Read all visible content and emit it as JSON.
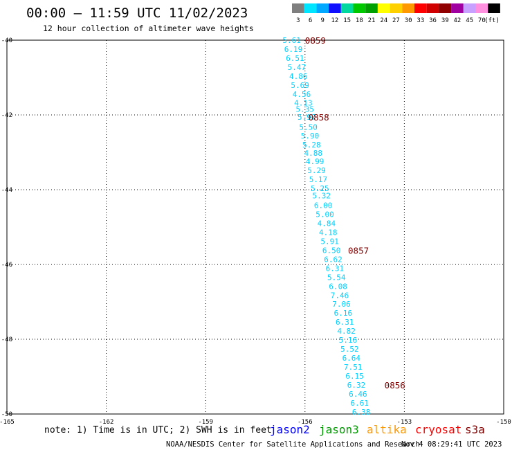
{
  "header": {
    "title": "00:00 – 11:59 UTC 11/02/2023",
    "subtitle": "12 hour collection of altimeter wave heights"
  },
  "colorbar": {
    "unit": "(ft)",
    "items": [
      {
        "label": "3",
        "color": "#7f7f7f"
      },
      {
        "label": "6",
        "color": "#00e5ff"
      },
      {
        "label": "9",
        "color": "#00a8ff"
      },
      {
        "label": "12",
        "color": "#1010ff"
      },
      {
        "label": "15",
        "color": "#00d8a0"
      },
      {
        "label": "18",
        "color": "#00c800"
      },
      {
        "label": "21",
        "color": "#00a000"
      },
      {
        "label": "24",
        "color": "#ffff00"
      },
      {
        "label": "27",
        "color": "#ffd000"
      },
      {
        "label": "30",
        "color": "#ff9900"
      },
      {
        "label": "33",
        "color": "#ff0000"
      },
      {
        "label": "36",
        "color": "#d00000"
      },
      {
        "label": "39",
        "color": "#900000"
      },
      {
        "label": "42",
        "color": "#a000a0"
      },
      {
        "label": "45",
        "color": "#c8a0ff"
      },
      {
        "label": "70",
        "color": "#ff90e0"
      },
      {
        "label": "",
        "color": "#000000"
      }
    ]
  },
  "chart_data": {
    "type": "scatter",
    "x_axis": {
      "range": [
        -165,
        -150
      ],
      "tick_values": [
        -165,
        -162,
        -159,
        -156,
        -153,
        -150
      ],
      "tick_labels": [
        "-165",
        "-162",
        "-159",
        "-156",
        "-153",
        "-150"
      ]
    },
    "y_axis": {
      "range": [
        -50,
        -40
      ],
      "tick_values": [
        -40,
        -42,
        -44,
        -46,
        -48,
        -50
      ],
      "tick_labels": [
        "-40",
        "-42",
        "-44",
        "-46",
        "-48",
        "-50"
      ]
    },
    "grid": true,
    "label_color": "#00d0ff",
    "points": [
      {
        "lon": -156.4,
        "lat": -40.0,
        "label": "5.61"
      },
      {
        "lon": -156.35,
        "lat": -40.24,
        "label": "6.19"
      },
      {
        "lon": -156.3,
        "lat": -40.48,
        "label": "6.51"
      },
      {
        "lon": -156.25,
        "lat": -40.72,
        "label": "5.47"
      },
      {
        "lon": -156.2,
        "lat": -40.96,
        "label": "4.86"
      },
      {
        "lon": -156.15,
        "lat": -41.2,
        "label": "5.69"
      },
      {
        "lon": -156.1,
        "lat": -41.44,
        "label": "4.56"
      },
      {
        "lon": -156.05,
        "lat": -41.68,
        "label": "4.13"
      },
      {
        "lon": -156.0,
        "lat": -41.84,
        "label": "5.35"
      },
      {
        "lon": -155.95,
        "lat": -42.06,
        "label": "5.97"
      },
      {
        "lon": -155.9,
        "lat": -42.32,
        "label": "5.50"
      },
      {
        "lon": -155.85,
        "lat": -42.56,
        "label": "5.90"
      },
      {
        "lon": -155.8,
        "lat": -42.8,
        "label": "5.28"
      },
      {
        "lon": -155.75,
        "lat": -43.02,
        "label": "4.88"
      },
      {
        "lon": -155.7,
        "lat": -43.24,
        "label": "4.99"
      },
      {
        "lon": -155.65,
        "lat": -43.48,
        "label": "5.29"
      },
      {
        "lon": -155.6,
        "lat": -43.72,
        "label": "5.17"
      },
      {
        "lon": -155.55,
        "lat": -43.96,
        "label": "5.25"
      },
      {
        "lon": -155.5,
        "lat": -44.16,
        "label": "5.32"
      },
      {
        "lon": -155.45,
        "lat": -44.42,
        "label": "6.00"
      },
      {
        "lon": -155.4,
        "lat": -44.66,
        "label": "5.00"
      },
      {
        "lon": -155.35,
        "lat": -44.9,
        "label": "4.84"
      },
      {
        "lon": -155.3,
        "lat": -45.14,
        "label": "4.18"
      },
      {
        "lon": -155.25,
        "lat": -45.38,
        "label": "5.91"
      },
      {
        "lon": -155.2,
        "lat": -45.62,
        "label": "6.50"
      },
      {
        "lon": -155.15,
        "lat": -45.86,
        "label": "6.62"
      },
      {
        "lon": -155.1,
        "lat": -46.1,
        "label": "6.31"
      },
      {
        "lon": -155.05,
        "lat": -46.34,
        "label": "5.54"
      },
      {
        "lon": -155.0,
        "lat": -46.58,
        "label": "6.08"
      },
      {
        "lon": -154.95,
        "lat": -46.82,
        "label": "7.46"
      },
      {
        "lon": -154.9,
        "lat": -47.06,
        "label": "7.06"
      },
      {
        "lon": -154.85,
        "lat": -47.3,
        "label": "6.16"
      },
      {
        "lon": -154.8,
        "lat": -47.54,
        "label": "6.31"
      },
      {
        "lon": -154.75,
        "lat": -47.78,
        "label": "4.82"
      },
      {
        "lon": -154.7,
        "lat": -48.02,
        "label": "5.16"
      },
      {
        "lon": -154.65,
        "lat": -48.26,
        "label": "5.52"
      },
      {
        "lon": -154.6,
        "lat": -48.5,
        "label": "6.64"
      },
      {
        "lon": -154.55,
        "lat": -48.74,
        "label": "7.51"
      },
      {
        "lon": -154.5,
        "lat": -48.98,
        "label": "6.15"
      },
      {
        "lon": -154.45,
        "lat": -49.22,
        "label": "6.32"
      },
      {
        "lon": -154.4,
        "lat": -49.46,
        "label": "6.46"
      },
      {
        "lon": -154.35,
        "lat": -49.7,
        "label": "6.61"
      },
      {
        "lon": -154.3,
        "lat": -49.94,
        "label": "6.38"
      }
    ],
    "time_annotations": [
      {
        "lon": -156.0,
        "lat": -40.0,
        "label": "0859"
      },
      {
        "lon": -155.9,
        "lat": -42.06,
        "label": "0858"
      },
      {
        "lon": -154.7,
        "lat": -45.62,
        "label": "0857"
      },
      {
        "lon": -153.6,
        "lat": -49.22,
        "label": "0856"
      }
    ]
  },
  "footer": {
    "note": "note: 1) Time is in UTC; 2) SWH is in feet",
    "satellites": [
      {
        "label": "jason2",
        "color": "#0000ff"
      },
      {
        "label": "jason3",
        "color": "#009900"
      },
      {
        "label": "altika",
        "color": "#ff9900"
      },
      {
        "label": "cryosat",
        "color": "#ff0000"
      },
      {
        "label": "s3a",
        "color": "#800000"
      }
    ],
    "credit": "NOAA/NESDIS Center for Satellite Applications and Research",
    "timestamp": "Nov  4 08:29:41 UTC 2023"
  }
}
